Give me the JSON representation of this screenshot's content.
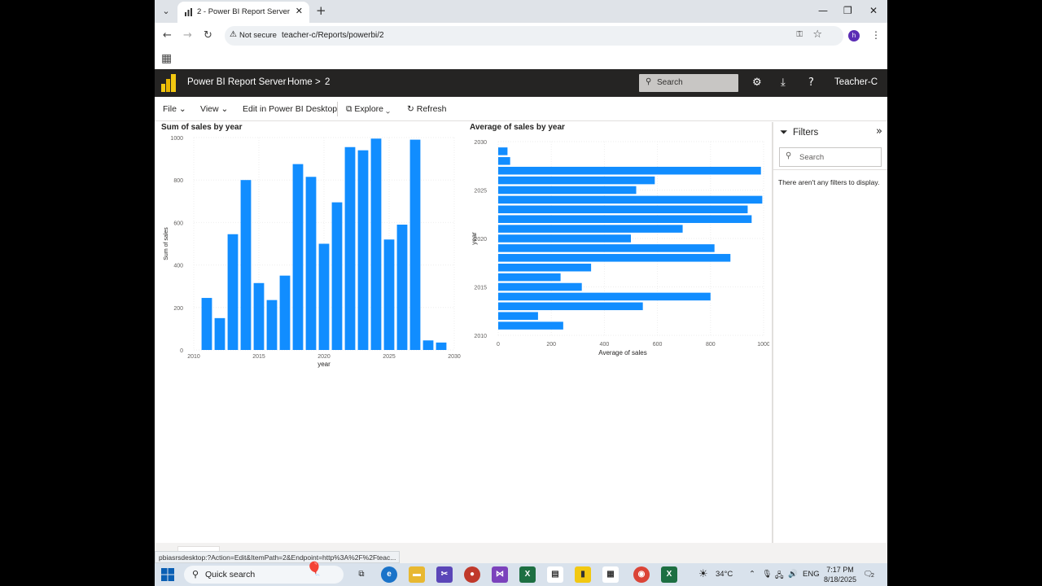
{
  "browser": {
    "tab_title": "2 - Power BI Report Server",
    "tab_close": "✕",
    "new_tab": "+",
    "security_label": "Not secure",
    "url": "teacher-c/Reports/powerbi/2",
    "profile_initial": "h",
    "status_url": "pbiasrsdesktop:?Action=Edit&ItemPath=2&Endpoint=http%3A%2F%2Fteac..."
  },
  "pbi": {
    "app_name": "Power BI Report Server",
    "breadcrumb_home": "Home",
    "breadcrumb_sep": ">",
    "breadcrumb_item": "2",
    "search_placeholder": "Search",
    "user": "Teacher-C"
  },
  "toolbar": {
    "file": "File",
    "view": "View",
    "edit_desktop": "Edit in Power BI Desktop",
    "explore": "Explore",
    "refresh": "Refresh"
  },
  "filters": {
    "title": "Filters",
    "search_placeholder": "Search",
    "empty_message": "There aren't any filters to display."
  },
  "taskbar": {
    "search_label": "Quick search",
    "temperature": "34°C",
    "language": "ENG",
    "time": "7:17 PM",
    "date": "8/18/2025",
    "notification_count": "2"
  },
  "chart_data": [
    {
      "type": "bar",
      "title": "Sum of sales by year",
      "xlabel": "year",
      "ylabel": "Sum of sales",
      "xlim": [
        2010,
        2030
      ],
      "ylim": [
        0,
        1000
      ],
      "x_ticks": [
        2010,
        2015,
        2020,
        2025,
        2030
      ],
      "y_ticks": [
        0,
        200,
        400,
        600,
        800,
        1000
      ],
      "x": [
        2011,
        2012,
        2013,
        2014,
        2015,
        2016,
        2017,
        2018,
        2019,
        2020,
        2021,
        2022,
        2023,
        2024,
        2025,
        2026,
        2027,
        2028,
        2029
      ],
      "values": [
        245,
        150,
        545,
        800,
        315,
        235,
        350,
        875,
        815,
        500,
        695,
        955,
        940,
        995,
        520,
        590,
        990,
        45,
        35
      ],
      "color": "#118DFF"
    },
    {
      "type": "bar",
      "orientation": "horizontal",
      "title": "Average of sales by year",
      "xlabel": "Average of sales",
      "ylabel": "year",
      "xlim": [
        0,
        1000
      ],
      "ylim": [
        2010,
        2030
      ],
      "x_ticks": [
        0,
        200,
        400,
        600,
        800,
        1000
      ],
      "y_ticks": [
        2010,
        2015,
        2020,
        2025,
        2030
      ],
      "y": [
        2011,
        2012,
        2013,
        2014,
        2015,
        2016,
        2017,
        2018,
        2019,
        2020,
        2021,
        2022,
        2023,
        2024,
        2025,
        2026,
        2027,
        2028,
        2029
      ],
      "values": [
        245,
        150,
        545,
        800,
        315,
        235,
        350,
        875,
        815,
        500,
        695,
        955,
        940,
        995,
        520,
        590,
        990,
        45,
        35
      ],
      "color": "#118DFF"
    }
  ]
}
